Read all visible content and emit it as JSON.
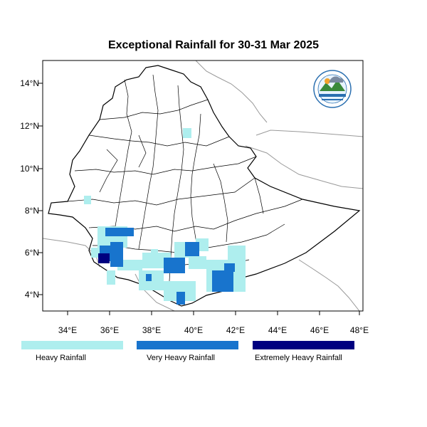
{
  "title": "Exceptional Rainfall for 30-31 Mar 2025",
  "colors": {
    "heavy": "#aeeeee",
    "very_heavy": "#1874cd",
    "extremely_heavy": "#000080",
    "border": "#000000",
    "neighbor": "#999999"
  },
  "axes": {
    "x_ticks": [
      "34°E",
      "36°E",
      "38°E",
      "40°E",
      "42°E",
      "44°E",
      "46°E",
      "48°E"
    ],
    "y_ticks": [
      "4°N",
      "6°N",
      "8°N",
      "10°N",
      "12°N",
      "14°N"
    ]
  },
  "legend": [
    {
      "label": "Heavy Rainfall",
      "color": "#aeeeee"
    },
    {
      "label": "Very Heavy Rainfall",
      "color": "#1874cd"
    },
    {
      "label": "Extremely Heavy Rainfall",
      "color": "#000080"
    }
  ],
  "logo": {
    "icon": "meteorology-agency-logo-icon"
  }
}
